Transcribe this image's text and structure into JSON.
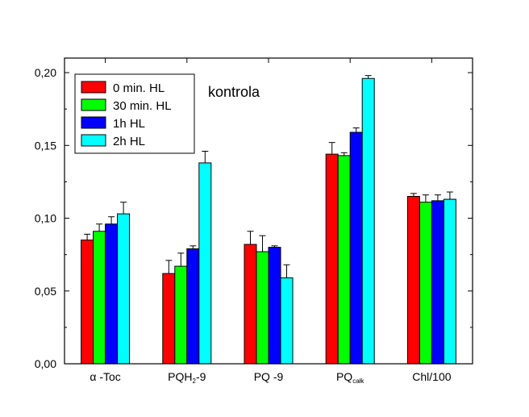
{
  "chart_data": {
    "type": "bar",
    "title": "",
    "xlabel": "",
    "ylabel": "",
    "ylim": [
      0,
      0.21
    ],
    "yticks": [
      "0,00",
      "0,05",
      "0,10",
      "0,15",
      "0,20"
    ],
    "ytick_values": [
      0,
      0.05,
      0.1,
      0.15,
      0.2
    ],
    "categories": [
      {
        "main": "α -Toc",
        "sub": ""
      },
      {
        "main": "PQH",
        "sub": "2",
        "suffix": "-9"
      },
      {
        "main": "PQ -9",
        "sub": ""
      },
      {
        "main": "PQ",
        "sub": "całk",
        "suffix": ""
      },
      {
        "main": "Chl/100",
        "sub": ""
      }
    ],
    "series": [
      {
        "name": "0 min. HL",
        "color": "#ff0000",
        "values": [
          0.085,
          0.062,
          0.082,
          0.144,
          0.115
        ],
        "errors": [
          0.004,
          0.009,
          0.009,
          0.008,
          0.002
        ]
      },
      {
        "name": "30 min. HL",
        "color": "#00ff00",
        "values": [
          0.091,
          0.067,
          0.077,
          0.143,
          0.111
        ],
        "errors": [
          0.005,
          0.009,
          0.011,
          0.002,
          0.005
        ]
      },
      {
        "name": "1h HL",
        "color": "#0000ff",
        "values": [
          0.096,
          0.079,
          0.08,
          0.159,
          0.112
        ],
        "errors": [
          0.005,
          0.002,
          0.001,
          0.003,
          0.004
        ]
      },
      {
        "name": "2h HL",
        "color": "#00ffff",
        "values": [
          0.103,
          0.138,
          0.059,
          0.196,
          0.113
        ],
        "errors": [
          0.008,
          0.008,
          0.009,
          0.002,
          0.005
        ]
      }
    ],
    "annotation": "kontrola",
    "legend_position": "top-left"
  }
}
